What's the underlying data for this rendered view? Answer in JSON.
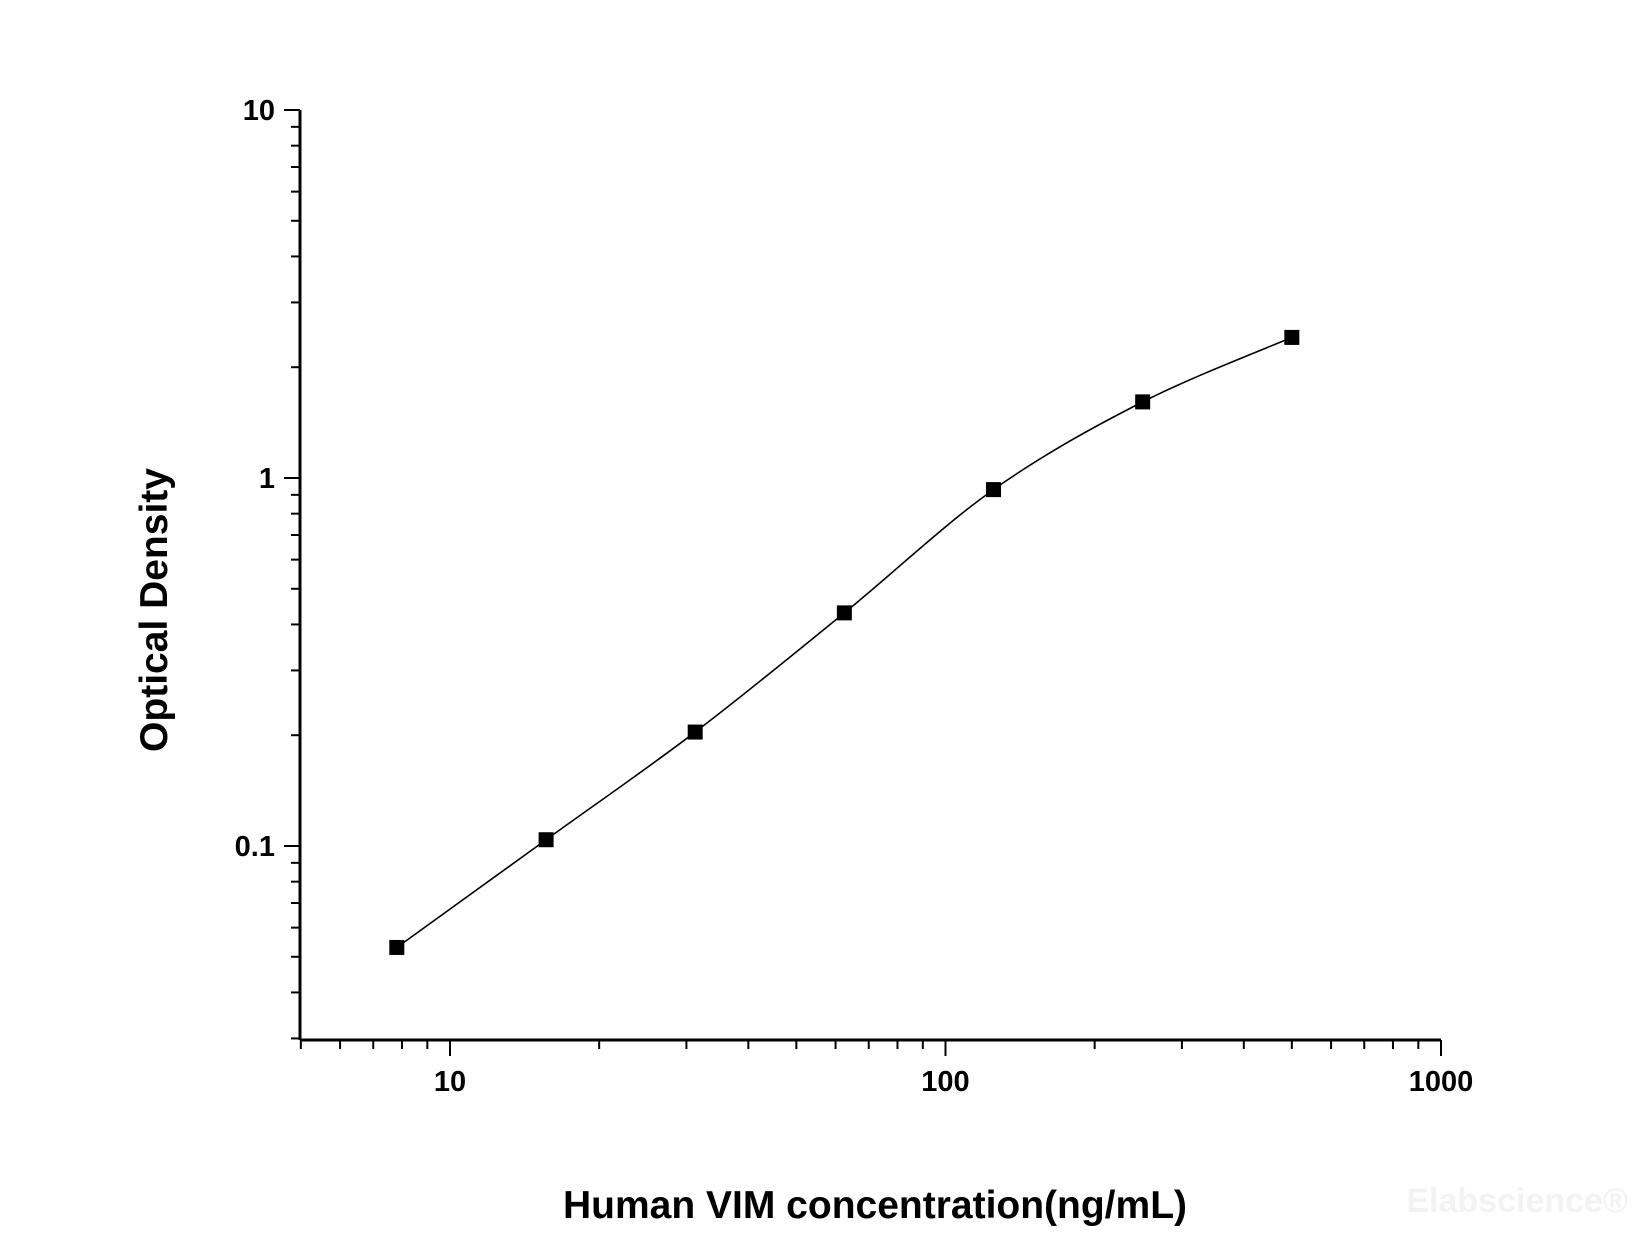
{
  "chart_data": {
    "type": "scatter",
    "title": "",
    "xlabel": "Human VIM concentration(ng/mL)",
    "ylabel": "Optical Density",
    "x_scale": "log",
    "y_scale": "log",
    "xlim": [
      5,
      1000
    ],
    "ylim": [
      0.03,
      10
    ],
    "x_tick_labels": [
      "10",
      "100",
      "1000"
    ],
    "y_tick_labels": [
      "0.1",
      "1",
      "10"
    ],
    "grid": false,
    "legend": "none",
    "series": [
      {
        "marker": "square",
        "fit_line": "smooth curve",
        "x": [
          7.81,
          15.63,
          31.25,
          62.5,
          125,
          250,
          500
        ],
        "y": [
          0.053,
          0.104,
          0.204,
          0.43,
          0.93,
          1.61,
          2.41
        ]
      }
    ],
    "watermark": "Elabscience®",
    "colors": {
      "marks": "#000000",
      "background": "#ffffff",
      "watermark": "#f3f3f3"
    }
  }
}
